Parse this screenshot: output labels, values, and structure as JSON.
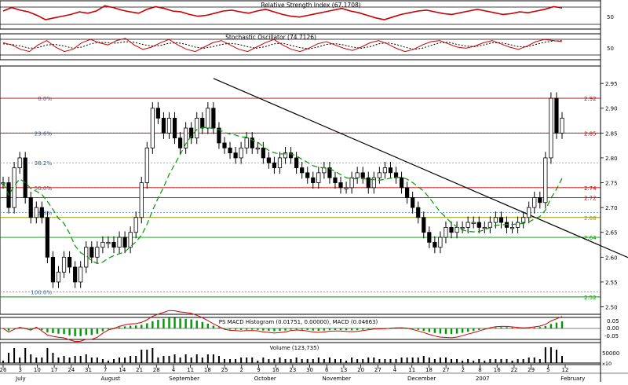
{
  "colors": {
    "rsi_line": "#cc0000",
    "stoch_k": "#cc0000",
    "stoch_d": "#000000",
    "candle": "#000000",
    "ma_line": "#009900",
    "trend_line": "#000000",
    "fib_line": "#6699cc",
    "fib_label": "#3366aa",
    "level_red": "#cc0000",
    "level_green": "#009900",
    "level_olive": "#999900",
    "macd_hist": "#009900",
    "macd_line": "#cc0000",
    "volume": "#000000",
    "grid": "#000000"
  },
  "chart_data": [
    {
      "panel": "rsi",
      "type": "line",
      "title": "Relative Strength Index (67.1708)",
      "y_ticks": [
        "50"
      ],
      "ylim": [
        20,
        80
      ],
      "reference_levels": [
        30,
        70
      ],
      "series": [
        {
          "values": [
            60,
            68,
            62,
            58,
            50,
            40,
            44,
            48,
            52,
            58,
            55,
            60,
            72,
            68,
            62,
            58,
            55,
            64,
            70,
            66,
            60,
            58,
            52,
            48,
            50,
            55,
            60,
            62,
            58,
            55,
            60,
            64,
            58,
            52,
            48,
            46,
            50,
            54,
            58,
            62,
            66,
            60,
            56,
            50,
            44,
            40,
            46,
            52,
            56,
            60,
            62,
            58,
            54,
            52,
            56,
            60,
            64,
            60,
            56,
            52,
            54,
            58,
            56,
            60,
            64,
            70,
            67
          ]
        }
      ]
    },
    {
      "panel": "stochastic",
      "type": "line",
      "title": "Stochastic Oscillator (74.7126)",
      "y_ticks": [
        "50"
      ],
      "ylim": [
        0,
        100
      ],
      "reference_levels": [
        20,
        80
      ],
      "series": [
        {
          "values": [
            70,
            60,
            40,
            30,
            60,
            80,
            50,
            30,
            40,
            70,
            85,
            70,
            60,
            80,
            90,
            60,
            40,
            50,
            70,
            85,
            60,
            40,
            30,
            50,
            70,
            80,
            60,
            40,
            30,
            50,
            70,
            85,
            60,
            40,
            30,
            45,
            65,
            75,
            60,
            45,
            35,
            50,
            70,
            80,
            65,
            45,
            30,
            40,
            60,
            75,
            80,
            65,
            50,
            45,
            55,
            70,
            80,
            65,
            50,
            40,
            55,
            75,
            85,
            80,
            75
          ]
        },
        {
          "values": [
            65,
            62,
            55,
            45,
            48,
            60,
            62,
            55,
            45,
            50,
            65,
            72,
            70,
            68,
            75,
            72,
            62,
            55,
            58,
            68,
            70,
            62,
            50,
            45,
            52,
            62,
            68,
            62,
            52,
            45,
            52,
            65,
            68,
            58,
            48,
            42,
            50,
            62,
            66,
            60,
            50,
            45,
            52,
            65,
            70,
            62,
            50,
            40,
            45,
            58,
            70,
            72,
            62,
            55,
            52,
            60,
            70,
            70,
            62,
            52,
            52,
            62,
            72,
            78,
            80
          ]
        }
      ]
    },
    {
      "panel": "price",
      "type": "candlestick",
      "y_ticks": [
        "2.95",
        "2.90",
        "2.85",
        "2.80",
        "2.75",
        "2.70",
        "2.65",
        "2.60",
        "2.55",
        "2.50"
      ],
      "ylim": [
        2.485,
        2.985
      ],
      "x_ticks": [
        "26",
        "3",
        "10",
        "17",
        "24",
        "31",
        "7",
        "14",
        "21",
        "28",
        "4",
        "11",
        "18",
        "25",
        "2",
        "9",
        "16",
        "23",
        "30",
        "6",
        "13",
        "20",
        "27",
        "4",
        "11",
        "18",
        "27",
        "2",
        "8",
        "16",
        "22",
        "29",
        "5",
        "12"
      ],
      "month_labels": [
        "July",
        "August",
        "September",
        "October",
        "November",
        "December",
        "2007",
        "February"
      ],
      "fibonacci": [
        {
          "label": "0.0%",
          "price": 2.92
        },
        {
          "label": "23.6%",
          "price": 2.85
        },
        {
          "label": "38.2%",
          "price": 2.79
        },
        {
          "label": "50.0%",
          "price": 2.74
        },
        {
          "label": "61.8%",
          "price": 2.69
        },
        {
          "label": "100.0%",
          "price": 2.53
        }
      ],
      "levels": [
        {
          "label": "2.92",
          "price": 2.92,
          "color": "red"
        },
        {
          "label": "2.85",
          "price": 2.85,
          "color": "red"
        },
        {
          "label": "2.74",
          "price": 2.74,
          "color": "red"
        },
        {
          "label": "2.72",
          "price": 2.72,
          "color": "red"
        },
        {
          "label": "2.68",
          "price": 2.68,
          "color": "olive"
        },
        {
          "label": "2.64",
          "price": 2.64,
          "color": "green"
        },
        {
          "label": "2.52",
          "price": 2.52,
          "color": "green"
        }
      ],
      "trendline": {
        "from": {
          "bar": 38,
          "price": 2.96
        },
        "to": {
          "bar": 119,
          "price": 2.57
        }
      },
      "close": [
        2.75,
        2.7,
        2.78,
        2.8,
        2.72,
        2.68,
        2.7,
        2.68,
        2.6,
        2.55,
        2.57,
        2.6,
        2.58,
        2.55,
        2.58,
        2.62,
        2.6,
        2.62,
        2.63,
        2.63,
        2.62,
        2.64,
        2.62,
        2.65,
        2.68,
        2.75,
        2.82,
        2.9,
        2.88,
        2.85,
        2.88,
        2.84,
        2.82,
        2.86,
        2.84,
        2.88,
        2.86,
        2.9,
        2.86,
        2.83,
        2.82,
        2.81,
        2.8,
        2.82,
        2.84,
        2.82,
        2.82,
        2.8,
        2.79,
        2.78,
        2.8,
        2.81,
        2.8,
        2.78,
        2.77,
        2.76,
        2.75,
        2.77,
        2.78,
        2.76,
        2.75,
        2.74,
        2.74,
        2.76,
        2.77,
        2.76,
        2.74,
        2.76,
        2.77,
        2.78,
        2.77,
        2.76,
        2.74,
        2.72,
        2.7,
        2.68,
        2.65,
        2.63,
        2.62,
        2.64,
        2.66,
        2.65,
        2.66,
        2.66,
        2.67,
        2.67,
        2.66,
        2.66,
        2.67,
        2.68,
        2.67,
        2.66,
        2.66,
        2.67,
        2.68,
        2.7,
        2.72,
        2.71,
        2.8,
        2.92,
        2.85,
        2.88
      ],
      "volume_title": "Volume (123,735)",
      "volume_ticks": [
        "50000"
      ],
      "volume_unit": "x10"
    },
    {
      "panel": "macd",
      "type": "bar",
      "title": "PS MACD Histogram (0.01751, 0.00000), MACD (0.04663)",
      "y_ticks": [
        "0.05",
        "0.00",
        "-0.05"
      ],
      "ylim": [
        -0.07,
        0.07
      ]
    }
  ]
}
